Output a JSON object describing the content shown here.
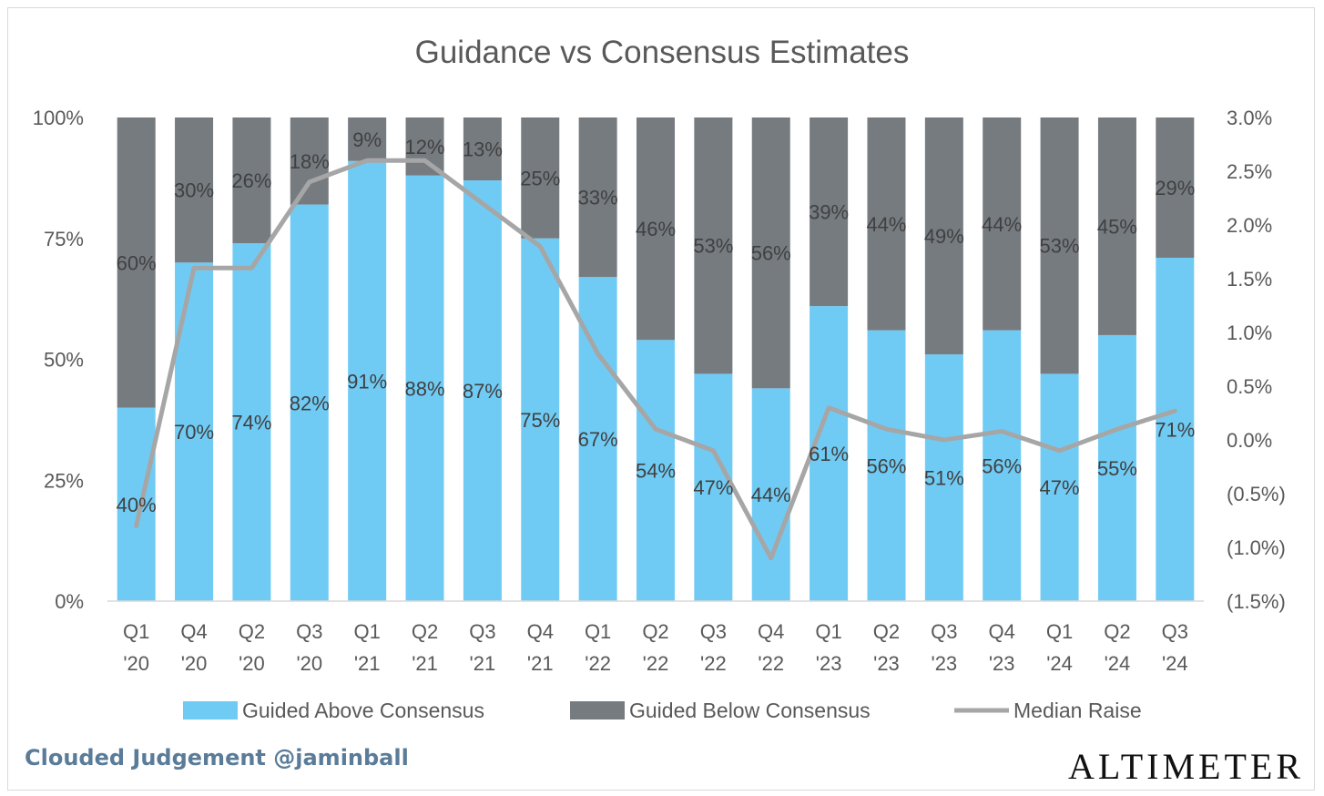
{
  "footer": {
    "credit": "Clouded Judgement @jaminball",
    "logo": "ALTIMETER"
  },
  "chart_data": {
    "type": "bar",
    "subtype": "stacked-100-with-line",
    "title": "Guidance vs Consensus Estimates",
    "categories": [
      [
        "Q1",
        "'20"
      ],
      [
        "Q4",
        "'20"
      ],
      [
        "Q2",
        "'20"
      ],
      [
        "Q3",
        "'20"
      ],
      [
        "Q1",
        "'21"
      ],
      [
        "Q2",
        "'21"
      ],
      [
        "Q3",
        "'21"
      ],
      [
        "Q4",
        "'21"
      ],
      [
        "Q1",
        "'22"
      ],
      [
        "Q2",
        "'22"
      ],
      [
        "Q3",
        "'22"
      ],
      [
        "Q4",
        "'22"
      ],
      [
        "Q1",
        "'23"
      ],
      [
        "Q2",
        "'23"
      ],
      [
        "Q3",
        "'23"
      ],
      [
        "Q4",
        "'23"
      ],
      [
        "Q1",
        "'24"
      ],
      [
        "Q2",
        "'24"
      ],
      [
        "Q3",
        "'24"
      ]
    ],
    "series": [
      {
        "name": "Guided Above Consensus",
        "color": "#70cbf4",
        "axis": "left",
        "values": [
          40,
          70,
          74,
          82,
          91,
          88,
          87,
          75,
          67,
          54,
          47,
          44,
          61,
          56,
          51,
          56,
          47,
          55,
          71
        ],
        "labels": [
          "40%",
          "70%",
          "74%",
          "82%",
          "91%",
          "88%",
          "87%",
          "75%",
          "67%",
          "54%",
          "47%",
          "44%",
          "61%",
          "56%",
          "51%",
          "56%",
          "47%",
          "55%",
          "71%"
        ]
      },
      {
        "name": "Guided Below Consensus",
        "color": "#767b80",
        "axis": "left",
        "values": [
          60,
          30,
          26,
          18,
          9,
          12,
          13,
          25,
          33,
          46,
          53,
          56,
          39,
          44,
          49,
          44,
          53,
          45,
          29
        ],
        "labels": [
          "60%",
          "30%",
          "26%",
          "18%",
          "9%",
          "12%",
          "13%",
          "25%",
          "33%",
          "46%",
          "53%",
          "56%",
          "39%",
          "44%",
          "49%",
          "44%",
          "53%",
          "45%",
          "29%"
        ]
      },
      {
        "name": "Median Raise",
        "type": "line",
        "color": "#a6a6a6",
        "axis": "right",
        "values": [
          -0.8,
          1.6,
          1.6,
          2.4,
          2.6,
          2.6,
          2.2,
          1.8,
          0.8,
          0.1,
          -0.1,
          -1.1,
          0.3,
          0.1,
          0.0,
          0.08,
          -0.1,
          0.1,
          0.27
        ]
      }
    ],
    "y_left": {
      "ylim": [
        0,
        100
      ],
      "ticks": [
        0,
        25,
        50,
        75,
        100
      ],
      "tick_labels": [
        "0%",
        "25%",
        "50%",
        "75%",
        "100%"
      ]
    },
    "y_right": {
      "ylim": [
        -1.5,
        3.0
      ],
      "ticks": [
        3.0,
        2.5,
        2.0,
        1.5,
        1.0,
        0.5,
        0.0,
        -0.5,
        -1.0,
        -1.5
      ],
      "tick_labels": [
        "3.0%",
        "2.5%",
        "2.0%",
        "1.5%",
        "1.0%",
        "0.5%",
        "0.0%",
        "(0.5%)",
        "(1.0%)",
        "(1.5%)"
      ]
    },
    "grid": false,
    "legend": "bottom"
  }
}
